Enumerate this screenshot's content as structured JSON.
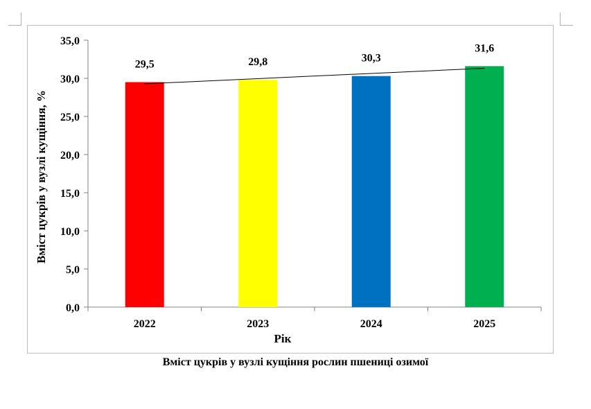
{
  "chart_data": {
    "type": "bar",
    "categories": [
      "2022",
      "2023",
      "2024",
      "2025"
    ],
    "values": [
      29.5,
      29.8,
      30.3,
      31.6
    ],
    "value_labels": [
      "29,5",
      "29,8",
      "30,3",
      "31,6"
    ],
    "bar_colors": [
      "#ff0000",
      "#ffff00",
      "#0070c0",
      "#00b050"
    ],
    "trendline": "linear",
    "xlabel": "Рік",
    "ylabel": "Вміст цукрів у вузлі кущіння, %",
    "ylim": [
      0,
      35
    ],
    "yticks": [
      0,
      5,
      10,
      15,
      20,
      25,
      30,
      35
    ],
    "ytick_labels": [
      "0,0",
      "5,0",
      "10,0",
      "15,0",
      "20,0",
      "25,0",
      "30,0",
      "35,0"
    ],
    "grid": false,
    "legend": "none"
  },
  "caption": "Вміст цукрів у вузлі кущіння рослин пшениці озимої"
}
